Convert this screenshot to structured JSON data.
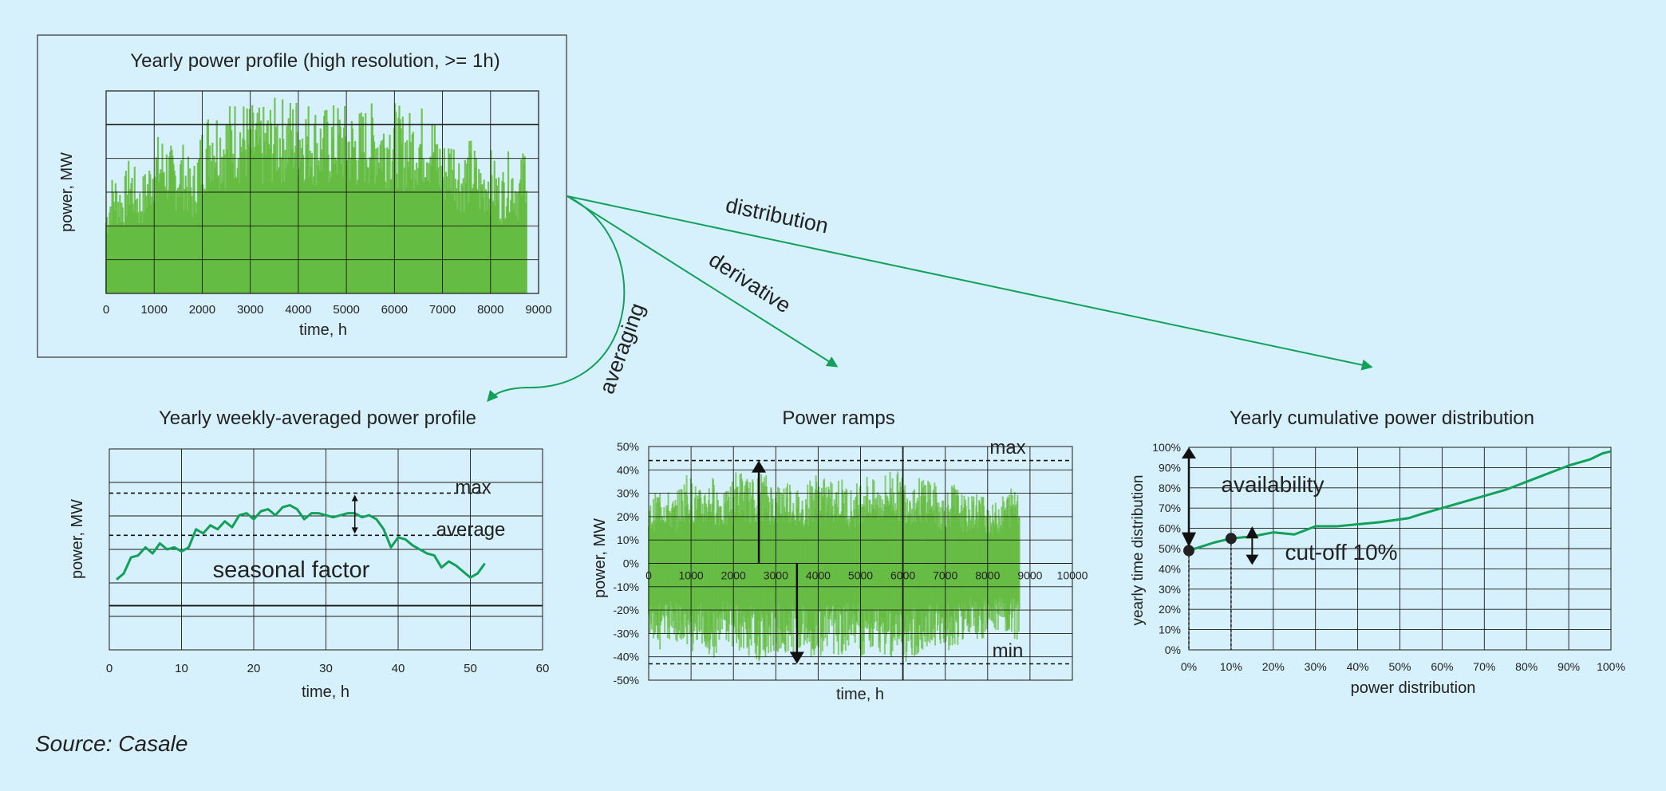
{
  "colors": {
    "background": "#d6f1fb",
    "profile_fill": "#62bb3c",
    "line": "#12a05a",
    "arrow": "#12a05a",
    "grid": "#1a1a1a"
  },
  "flow_labels": {
    "distribution": "distribution",
    "derivative": "derivative",
    "averaging": "averaging"
  },
  "source": "Source: Casale",
  "chart_data": [
    {
      "type": "area",
      "title": "Yearly power profile (high resolution, >= 1h)",
      "xlabel": "time, h",
      "ylabel": "power, MW",
      "xlim": [
        0,
        9000
      ],
      "xticks": [
        "0",
        "1000",
        "2000",
        "3000",
        "4000",
        "5000",
        "6000",
        "7000",
        "8000",
        "9000"
      ],
      "grid": true,
      "data_extent": [
        0,
        8760
      ],
      "envelope": [
        [
          0,
          0.45
        ],
        [
          150,
          0.62
        ],
        [
          350,
          0.55
        ],
        [
          500,
          0.7
        ],
        [
          700,
          0.55
        ],
        [
          900,
          0.68
        ],
        [
          1000,
          0.78
        ],
        [
          1200,
          0.8
        ],
        [
          1400,
          0.72
        ],
        [
          1600,
          0.75
        ],
        [
          1800,
          0.62
        ],
        [
          2000,
          0.85
        ],
        [
          2200,
          0.97
        ],
        [
          2400,
          0.92
        ],
        [
          2700,
          0.98
        ],
        [
          3000,
          0.95
        ],
        [
          3200,
          0.92
        ],
        [
          3500,
          0.97
        ],
        [
          3800,
          0.98
        ],
        [
          4000,
          0.99
        ],
        [
          4200,
          0.97
        ],
        [
          4500,
          0.92
        ],
        [
          4800,
          0.95
        ],
        [
          5000,
          0.94
        ],
        [
          5200,
          0.91
        ],
        [
          5500,
          0.95
        ],
        [
          5800,
          0.93
        ],
        [
          6000,
          0.96
        ],
        [
          6200,
          0.9
        ],
        [
          6400,
          0.92
        ],
        [
          6600,
          0.94
        ],
        [
          6800,
          0.91
        ],
        [
          7000,
          0.75
        ],
        [
          7200,
          0.82
        ],
        [
          7400,
          0.7
        ],
        [
          7600,
          0.78
        ],
        [
          7800,
          0.65
        ],
        [
          8000,
          0.72
        ],
        [
          8200,
          0.6
        ],
        [
          8400,
          0.72
        ],
        [
          8600,
          0.62
        ],
        [
          8760,
          0.85
        ]
      ]
    },
    {
      "type": "line",
      "title": "Yearly weekly-averaged power profile",
      "xlabel": "time, h",
      "ylabel": "power, MW",
      "xlim": [
        0,
        60
      ],
      "xticks": [
        "0",
        "10",
        "20",
        "30",
        "40",
        "50",
        "60"
      ],
      "grid": true,
      "annotations": {
        "max": "max",
        "average": "average",
        "seasonal": "seasonal factor"
      },
      "reference_levels": {
        "max": 0.78,
        "average": 0.57,
        "base": 0.22
      },
      "series": [
        {
          "x": [
            1,
            2,
            3,
            4,
            5,
            6,
            7,
            8,
            9,
            10,
            11,
            12,
            13,
            14,
            15,
            16,
            17,
            18,
            19,
            20,
            21,
            22,
            23,
            24,
            25,
            26,
            27,
            28,
            29,
            30,
            31,
            32,
            33,
            34,
            35,
            36,
            37,
            38,
            39,
            40,
            41,
            42,
            43,
            44,
            45,
            46,
            47,
            48,
            49,
            50,
            51,
            52
          ],
          "values": [
            0.35,
            0.38,
            0.46,
            0.47,
            0.51,
            0.48,
            0.53,
            0.5,
            0.51,
            0.49,
            0.51,
            0.6,
            0.58,
            0.62,
            0.6,
            0.64,
            0.61,
            0.67,
            0.68,
            0.65,
            0.69,
            0.7,
            0.67,
            0.71,
            0.72,
            0.7,
            0.65,
            0.68,
            0.68,
            0.67,
            0.66,
            0.67,
            0.68,
            0.68,
            0.66,
            0.67,
            0.65,
            0.6,
            0.51,
            0.56,
            0.55,
            0.52,
            0.5,
            0.48,
            0.47,
            0.41,
            0.44,
            0.42,
            0.39,
            0.36,
            0.38,
            0.43
          ]
        }
      ]
    },
    {
      "type": "area",
      "title": "Power ramps",
      "xlabel": "time, h",
      "ylabel": "power, MW",
      "xlim": [
        0,
        10000
      ],
      "ylim": [
        -50,
        50
      ],
      "xticks": [
        "0",
        "1000",
        "2000",
        "3000",
        "4000",
        "5000",
        "6000",
        "7000",
        "8000",
        "9000",
        "10000"
      ],
      "yticks": [
        "50%",
        "40%",
        "30%",
        "20%",
        "10%",
        "0%",
        "-10%",
        "-20%",
        "-30%",
        "-40%",
        "-50%"
      ],
      "grid": true,
      "annotations": {
        "max": "max",
        "min": "min"
      },
      "reference_levels": {
        "max": 44,
        "min": -43
      },
      "data_extent": [
        0,
        8760
      ],
      "envelope": [
        [
          0,
          25,
          -30
        ],
        [
          300,
          35,
          -38
        ],
        [
          600,
          28,
          -32
        ],
        [
          900,
          40,
          -40
        ],
        [
          1200,
          32,
          -36
        ],
        [
          1500,
          38,
          -42
        ],
        [
          1800,
          30,
          -34
        ],
        [
          2100,
          42,
          -38
        ],
        [
          2400,
          36,
          -40
        ],
        [
          2700,
          40,
          -43
        ],
        [
          3000,
          34,
          -38
        ],
        [
          3300,
          38,
          -40
        ],
        [
          3600,
          30,
          -36
        ],
        [
          3900,
          40,
          -42
        ],
        [
          4200,
          36,
          -38
        ],
        [
          4500,
          38,
          -40
        ],
        [
          4800,
          32,
          -36
        ],
        [
          5100,
          40,
          -42
        ],
        [
          5400,
          34,
          -38
        ],
        [
          5700,
          42,
          -40
        ],
        [
          6000,
          38,
          -43
        ],
        [
          6300,
          36,
          -40
        ],
        [
          6600,
          40,
          -38
        ],
        [
          6900,
          30,
          -36
        ],
        [
          7200,
          35,
          -38
        ],
        [
          7500,
          28,
          -32
        ],
        [
          7800,
          32,
          -34
        ],
        [
          8100,
          25,
          -30
        ],
        [
          8400,
          30,
          -32
        ],
        [
          8760,
          38,
          -34
        ]
      ]
    },
    {
      "type": "line",
      "title": "Yearly cumulative power distribution",
      "xlabel": "power distribution",
      "ylabel": "yearly time distribution",
      "xlim": [
        0,
        100
      ],
      "ylim": [
        0,
        100
      ],
      "xticks": [
        "0%",
        "10%",
        "20%",
        "30%",
        "40%",
        "50%",
        "60%",
        "70%",
        "80%",
        "90%",
        "100%"
      ],
      "yticks": [
        "100%",
        "90%",
        "80%",
        "70%",
        "60%",
        "50%",
        "40%",
        "30%",
        "20%",
        "10%",
        "0%"
      ],
      "grid": true,
      "annotations": {
        "availability": "availability",
        "cutoff": "cut-off 10%"
      },
      "markers": [
        {
          "x": 0,
          "y": 49
        },
        {
          "x": 10,
          "y": 55
        }
      ],
      "series": [
        {
          "x": [
            0,
            3,
            6,
            10,
            15,
            20,
            25,
            30,
            35,
            40,
            45,
            52,
            55,
            60,
            65,
            70,
            75,
            80,
            85,
            90,
            95,
            98,
            100
          ],
          "values": [
            49,
            51,
            53,
            55,
            56,
            58,
            57,
            61,
            61,
            62,
            63,
            65,
            67,
            70,
            73,
            76,
            79,
            83,
            87,
            91,
            94,
            97,
            98
          ]
        }
      ]
    }
  ]
}
